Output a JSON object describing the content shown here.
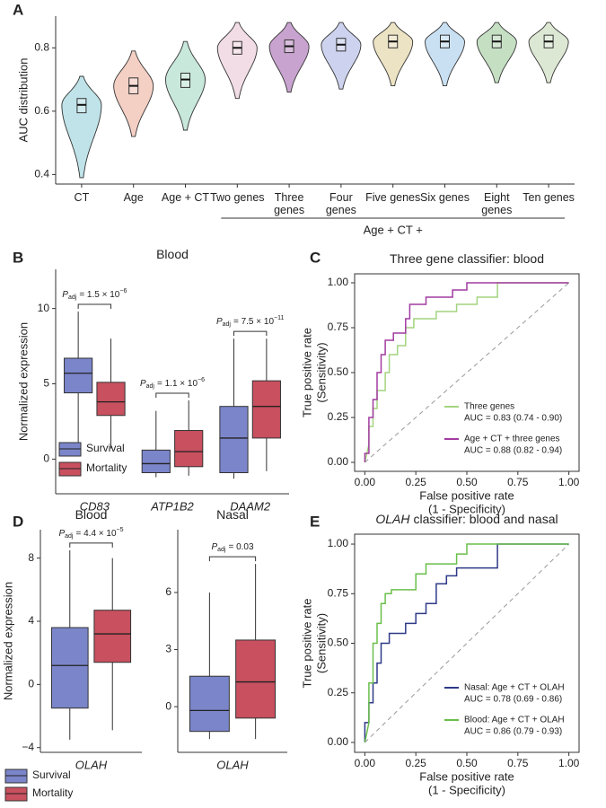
{
  "chart_data": [
    {
      "type": "violin",
      "panel": "A",
      "ylabel": "AUC distribution",
      "categories": [
        "CT",
        "Age",
        "Age + CT",
        "Two genes",
        "Three genes",
        "Four genes",
        "Five genes",
        "Six genes",
        "Eight genes",
        "Ten genes"
      ],
      "colors": [
        "#bfe3e8",
        "#f4cfc4",
        "#c8e8dc",
        "#f2dde6",
        "#c9a3cf",
        "#cdd3ee",
        "#ece3c4",
        "#c9e0f2",
        "#c5dfc3",
        "#dde8d4"
      ],
      "min": [
        0.39,
        0.52,
        0.54,
        0.64,
        0.66,
        0.67,
        0.68,
        0.68,
        0.69,
        0.69
      ],
      "q1": [
        0.595,
        0.655,
        0.675,
        0.78,
        0.785,
        0.79,
        0.8,
        0.8,
        0.8,
        0.8
      ],
      "median": [
        0.62,
        0.68,
        0.7,
        0.8,
        0.805,
        0.81,
        0.82,
        0.82,
        0.82,
        0.82
      ],
      "q3": [
        0.64,
        0.705,
        0.72,
        0.82,
        0.825,
        0.83,
        0.84,
        0.84,
        0.84,
        0.84
      ],
      "max": [
        0.71,
        0.79,
        0.82,
        0.88,
        0.88,
        0.88,
        0.88,
        0.88,
        0.88,
        0.88
      ],
      "ylim": [
        0.37,
        0.9
      ],
      "yticks": [
        0.4,
        0.6,
        0.8
      ],
      "group_label": "Age + CT +"
    },
    {
      "type": "box",
      "panel": "B",
      "title": "Blood",
      "ylabel": "Normalized expression",
      "categories": [
        "CD83",
        "ATP1B2",
        "DAAM2"
      ],
      "series": [
        {
          "name": "Survival",
          "color": "#7b85c9",
          "min": [
            1.0,
            -1.2,
            -1.3
          ],
          "q1": [
            4.4,
            -0.9,
            -0.9
          ],
          "median": [
            5.7,
            -0.3,
            1.4
          ],
          "q3": [
            6.7,
            0.6,
            3.5
          ],
          "max": [
            9.8,
            3.2,
            8.0
          ]
        },
        {
          "name": "Mortality",
          "color": "#c8505f",
          "min": [
            0.7,
            -1.1,
            -0.8
          ],
          "q1": [
            2.9,
            -0.5,
            1.4
          ],
          "median": [
            3.8,
            0.5,
            3.5
          ],
          "q3": [
            5.1,
            1.9,
            5.2
          ],
          "max": [
            8.0,
            3.9,
            8.0
          ]
        }
      ],
      "p_values": [
        {
          "symbol": "P",
          "subscript": "adj",
          "text": "= 1.5 × 10",
          "exponent": "−6"
        },
        {
          "symbol": "P",
          "subscript": "adj",
          "text": "= 1.1 × 10",
          "exponent": "−6"
        },
        {
          "symbol": "P",
          "subscript": "adj",
          "text": "= 7.5 × 10",
          "exponent": "−11"
        }
      ],
      "ylim": [
        -2.3,
        12.6
      ],
      "yticks": [
        0,
        5,
        10
      ],
      "legend": "bottom-left"
    },
    {
      "type": "line",
      "panel": "C",
      "title": "Three gene classifier: blood",
      "xlabel": [
        "False positive rate",
        "(1 - Specificity)"
      ],
      "ylabel": [
        "True positive rate",
        "(Sensitivity)"
      ],
      "series": [
        {
          "name": "Three genes",
          "color": "#a3d47f",
          "auc": "AUC = 0.83 (0.74 - 0.90)",
          "x": [
            0,
            0.02,
            0.02,
            0.04,
            0.04,
            0.06,
            0.06,
            0.1,
            0.1,
            0.12,
            0.12,
            0.16,
            0.16,
            0.2,
            0.2,
            0.24,
            0.24,
            0.35,
            0.35,
            0.45,
            0.45,
            0.55,
            0.55,
            0.65,
            0.65,
            1
          ],
          "y": [
            0,
            0.1,
            0.2,
            0.2,
            0.3,
            0.3,
            0.4,
            0.4,
            0.5,
            0.5,
            0.6,
            0.6,
            0.65,
            0.65,
            0.75,
            0.75,
            0.8,
            0.8,
            0.84,
            0.84,
            0.88,
            0.88,
            0.92,
            0.92,
            1,
            1
          ]
        },
        {
          "name": "Age + CT + three genes",
          "color": "#a23ba0",
          "auc": "AUC = 0.88 (0.82 - 0.94)",
          "x": [
            0,
            0,
            0.02,
            0.02,
            0.04,
            0.04,
            0.06,
            0.06,
            0.08,
            0.08,
            0.1,
            0.1,
            0.14,
            0.14,
            0.2,
            0.2,
            0.22,
            0.22,
            0.3,
            0.3,
            0.43,
            0.43,
            0.5,
            0.5,
            1
          ],
          "y": [
            0,
            0.05,
            0.05,
            0.25,
            0.25,
            0.35,
            0.35,
            0.5,
            0.5,
            0.6,
            0.6,
            0.68,
            0.68,
            0.72,
            0.72,
            0.8,
            0.8,
            0.88,
            0.88,
            0.92,
            0.92,
            0.96,
            0.96,
            1,
            1
          ]
        }
      ],
      "xlim": [
        -0.05,
        1.05
      ],
      "ylim": [
        -0.05,
        1.05
      ],
      "xticks": [
        {
          "value": 0,
          "label": "0.00"
        },
        {
          "value": 0.25,
          "label": "0.25"
        },
        {
          "value": 0.5,
          "label": "0.50"
        },
        {
          "value": 0.75,
          "label": "0.75"
        },
        {
          "value": 1,
          "label": "1.00"
        }
      ],
      "yticks": [
        {
          "value": 0,
          "label": "0.00"
        },
        {
          "value": 0.25,
          "label": "0.25"
        },
        {
          "value": 0.5,
          "label": "0.50"
        },
        {
          "value": 0.75,
          "label": "0.75"
        },
        {
          "value": 1,
          "label": "1.00"
        }
      ],
      "legend": "bottom-right"
    },
    {
      "type": "box",
      "panel": "D",
      "title": "Blood",
      "ylabel": "Normalized expression",
      "categories": [
        "OLAH"
      ],
      "series": [
        {
          "name": "Survival",
          "color": "#7b85c9",
          "min": [
            -3.5
          ],
          "q1": [
            -1.5
          ],
          "median": [
            1.2
          ],
          "q3": [
            3.6
          ],
          "max": [
            8.5
          ]
        },
        {
          "name": "Mortality",
          "color": "#c8505f",
          "min": [
            -2.9
          ],
          "q1": [
            1.4
          ],
          "median": [
            3.2
          ],
          "q3": [
            4.7
          ],
          "max": [
            8.0
          ]
        }
      ],
      "p_values": [
        {
          "symbol": "P",
          "subscript": "adj",
          "text": "= 4.4 × 10",
          "exponent": "−5"
        }
      ],
      "ylim": [
        -4.3,
        9.8
      ],
      "yticks": [
        {
          "value": -4,
          "label": "−4"
        },
        0,
        4,
        8
      ],
      "legend": "below"
    },
    {
      "type": "box",
      "title": "Nasal",
      "categories": [
        "OLAH"
      ],
      "series": [
        {
          "color": "#7b85c9",
          "min": [
            -1.7
          ],
          "q1": [
            -1.3
          ],
          "median": [
            -0.2
          ],
          "q3": [
            1.6
          ],
          "max": [
            6.0
          ]
        },
        {
          "color": "#c8505f",
          "min": [
            -1.7
          ],
          "q1": [
            -0.6
          ],
          "median": [
            1.3
          ],
          "q3": [
            3.5
          ],
          "max": [
            7.5
          ]
        }
      ],
      "p_values": [
        {
          "symbol": "P",
          "subscript": "adj",
          "text": "= 0.03"
        }
      ],
      "ylim": [
        -2.4,
        9.3
      ],
      "yticks": [
        0,
        3,
        6
      ]
    },
    {
      "type": "line",
      "panel": "E",
      "title_gene": "OLAH",
      "title": "classifier: blood and nasal",
      "xlabel": [
        "False positive rate",
        "(1 - Specificity)"
      ],
      "ylabel": [
        "True positive rate",
        "(Sensitivity)"
      ],
      "series": [
        {
          "name": "Nasal: Age + CT + OLAH",
          "color": "#2e3a87",
          "auc": "AUC = 0.78 (0.69 - 0.86)",
          "x": [
            0,
            0,
            0.02,
            0.02,
            0.04,
            0.04,
            0.06,
            0.06,
            0.08,
            0.08,
            0.12,
            0.12,
            0.2,
            0.2,
            0.25,
            0.25,
            0.3,
            0.3,
            0.35,
            0.35,
            0.4,
            0.4,
            0.45,
            0.45,
            0.65,
            0.65,
            1
          ],
          "y": [
            0,
            0.1,
            0.1,
            0.2,
            0.2,
            0.3,
            0.3,
            0.4,
            0.4,
            0.5,
            0.5,
            0.55,
            0.55,
            0.6,
            0.6,
            0.65,
            0.65,
            0.7,
            0.7,
            0.8,
            0.8,
            0.84,
            0.84,
            0.88,
            0.88,
            1,
            1
          ]
        },
        {
          "name": "Blood: Age + CT + OLAH",
          "color": "#6abf4b",
          "auc": "AUC = 0.86 (0.79 - 0.93)",
          "x": [
            0,
            0.02,
            0.02,
            0.04,
            0.04,
            0.06,
            0.06,
            0.08,
            0.08,
            0.1,
            0.1,
            0.13,
            0.13,
            0.25,
            0.25,
            0.3,
            0.3,
            0.45,
            0.45,
            0.5,
            0.5,
            1
          ],
          "y": [
            0,
            0.1,
            0.3,
            0.3,
            0.5,
            0.5,
            0.6,
            0.6,
            0.7,
            0.7,
            0.75,
            0.75,
            0.77,
            0.77,
            0.85,
            0.85,
            0.9,
            0.9,
            0.95,
            0.95,
            1,
            1
          ]
        }
      ],
      "xlim": [
        -0.05,
        1.05
      ],
      "ylim": [
        -0.05,
        1.05
      ],
      "xticks": [
        {
          "value": 0,
          "label": "0.00"
        },
        {
          "value": 0.25,
          "label": "0.25"
        },
        {
          "value": 0.5,
          "label": "0.50"
        },
        {
          "value": 0.75,
          "label": "0.75"
        },
        {
          "value": 1,
          "label": "1.00"
        }
      ],
      "yticks": [
        {
          "value": 0,
          "label": "0.00"
        },
        {
          "value": 0.25,
          "label": "0.25"
        },
        {
          "value": 0.5,
          "label": "0.50"
        },
        {
          "value": 0.75,
          "label": "0.75"
        },
        {
          "value": 1,
          "label": "1.00"
        }
      ],
      "legend": "bottom-right"
    }
  ]
}
